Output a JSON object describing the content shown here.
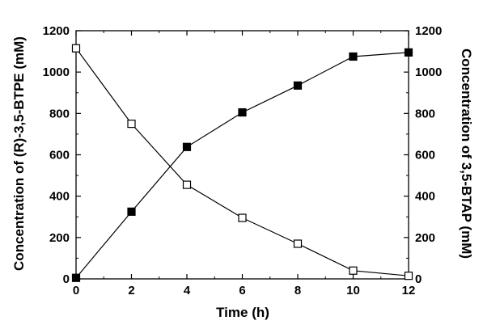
{
  "chart_data": {
    "type": "line",
    "xlabel": "Time (h)",
    "ylabel_left": "Concentration of (R)-3,5-BTPE (mM)",
    "ylabel_right": "Concentration of 3,5-BTAP (mM)",
    "xlim": [
      0,
      12
    ],
    "ylim": [
      0,
      1200
    ],
    "xticks": [
      "0",
      "2",
      "4",
      "6",
      "8",
      "10",
      "12"
    ],
    "yticks": [
      "0",
      "200",
      "400",
      "600",
      "800",
      "1000",
      "1200"
    ],
    "grid": false,
    "series": [
      {
        "marker": "filled-square",
        "axis": "left",
        "color": "#000000",
        "x": [
          0,
          2,
          4,
          6,
          8,
          10,
          12
        ],
        "y": [
          5,
          325,
          638,
          805,
          935,
          1075,
          1095
        ]
      },
      {
        "marker": "open-square",
        "axis": "right",
        "color": "#000000",
        "x": [
          0,
          2,
          4,
          6,
          8,
          10,
          12
        ],
        "y": [
          1115,
          750,
          455,
          295,
          170,
          40,
          15
        ]
      }
    ]
  }
}
